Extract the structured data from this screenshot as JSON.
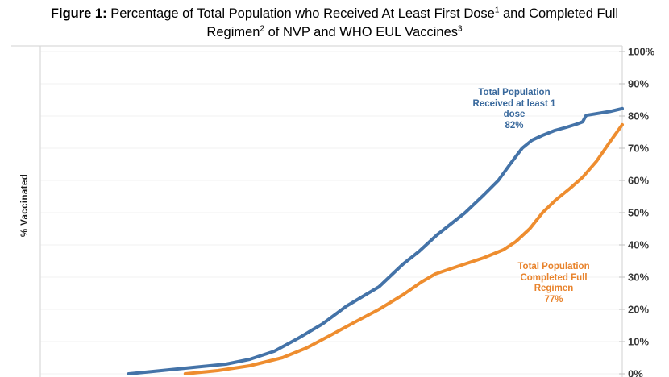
{
  "figure": {
    "title": {
      "prefix": "Figure 1:",
      "seg1": " Percentage of Total Population who Received At Least First Dose",
      "sup1": "1",
      "seg2": " and Completed Full Regimen",
      "sup2": "2",
      "seg3": " of NVP and WHO EUL Vaccines",
      "sup3": "3"
    }
  },
  "chart_data": {
    "type": "line",
    "title": "Figure 1: Percentage of Total Population who Received At Least First Dose and Completed Full Regimen of NVP and WHO EUL Vaccines",
    "ylabel": "% Vaccinated",
    "xlabel": "",
    "ylim": [
      0,
      100
    ],
    "y_tick_labels": [
      "100%",
      "90%",
      "80%",
      "70%",
      "60%",
      "50%",
      "40%",
      "30%",
      "20%",
      "10%",
      "0%"
    ],
    "y_axis_side": "right",
    "grid": "horizontal, faint",
    "legend": "none (inline colored annotations)",
    "x_axis_labels_visible": false,
    "x_unit": "percent of visible timeline (date labels cropped out of view)",
    "series": [
      {
        "name": "Total Population Received at least 1 dose",
        "final_value": "82%",
        "color": "#4473A8",
        "points": [
          [
            15.2,
            0
          ],
          [
            20.8,
            1
          ],
          [
            26.3,
            2
          ],
          [
            31.9,
            3
          ],
          [
            36.0,
            4.5
          ],
          [
            40.2,
            7
          ],
          [
            44.3,
            11
          ],
          [
            48.5,
            15.5
          ],
          [
            52.6,
            21
          ],
          [
            58.2,
            27
          ],
          [
            62.3,
            34
          ],
          [
            65.1,
            38
          ],
          [
            68.1,
            43
          ],
          [
            70.9,
            47
          ],
          [
            73.0,
            50
          ],
          [
            76.2,
            55.5
          ],
          [
            78.7,
            60
          ],
          [
            80.7,
            65
          ],
          [
            82.8,
            70
          ],
          [
            84.5,
            72.5
          ],
          [
            86.3,
            74
          ],
          [
            88.4,
            75.5
          ],
          [
            90.4,
            76.5
          ],
          [
            92.2,
            77.5
          ],
          [
            93.2,
            78.2
          ],
          [
            93.8,
            80.2
          ],
          [
            95.8,
            80.8
          ],
          [
            97.9,
            81.4
          ],
          [
            100,
            82.3
          ]
        ]
      },
      {
        "name": "Total Population Completed Full Regimen",
        "final_value": "77%",
        "color": "#EE8D2F",
        "points": [
          [
            24.9,
            0
          ],
          [
            30.5,
            1
          ],
          [
            36.0,
            2.5
          ],
          [
            41.6,
            5
          ],
          [
            45.7,
            8
          ],
          [
            49.9,
            12
          ],
          [
            54.0,
            16
          ],
          [
            58.2,
            20
          ],
          [
            62.3,
            24.5
          ],
          [
            65.5,
            28.5
          ],
          [
            67.9,
            31
          ],
          [
            72.0,
            33.5
          ],
          [
            76.2,
            36
          ],
          [
            79.6,
            38.5
          ],
          [
            81.7,
            41
          ],
          [
            84.1,
            45
          ],
          [
            86.3,
            50
          ],
          [
            88.6,
            54
          ],
          [
            91.0,
            57.5
          ],
          [
            93.2,
            61
          ],
          [
            95.6,
            66
          ],
          [
            97.9,
            72
          ],
          [
            100,
            77.3
          ]
        ]
      }
    ],
    "annotations": [
      {
        "series": "Total Population Received at least 1 dose",
        "color": "#38689c",
        "text": "Total Population\nReceived at least 1\ndose\n82%"
      },
      {
        "series": "Total Population Completed Full Regimen",
        "color": "#e8832c",
        "text": "Total Population\nCompleted Full\nRegimen\n77%"
      }
    ],
    "colors": {
      "gridline": "#F2F2F2",
      "axis_border": "#D9D9D9",
      "tick_mark": "#BFBFBF",
      "tick_label": "#383838"
    }
  }
}
